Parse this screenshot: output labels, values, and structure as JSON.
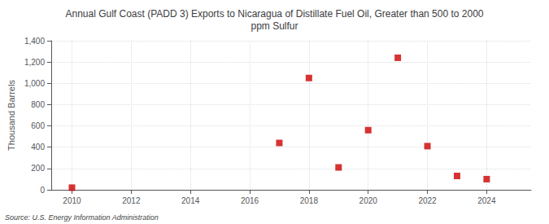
{
  "chart_data": {
    "type": "scatter",
    "title": "Annual Gulf Coast (PADD 3) Exports to Nicaragua of Distillate Fuel Oil, Greater than 500 to 2000\nppm Sulfur",
    "ylabel": "Thousand Barrels",
    "source": "Source: U.S. Energy Information Administration",
    "x": [
      2010,
      2011,
      2012,
      2013,
      2014,
      2015,
      2016,
      2017,
      2018,
      2019,
      2020,
      2021,
      2022,
      2023,
      2024
    ],
    "values": [
      20,
      null,
      null,
      null,
      null,
      null,
      null,
      440,
      1050,
      210,
      560,
      1240,
      410,
      130,
      100
    ],
    "color": "#cc0000",
    "marker": "square",
    "xlim": [
      2009.3,
      2025.5
    ],
    "xticks": [
      2010,
      2012,
      2014,
      2016,
      2018,
      2020,
      2022,
      2024
    ],
    "ylim": [
      0,
      1400
    ],
    "yticks": [
      0,
      200,
      400,
      600,
      800,
      {
        "value": 1000,
        "label": "1,000"
      },
      {
        "value": 1200,
        "label": "1,200"
      },
      {
        "value": 1400,
        "label": "1,400"
      }
    ],
    "grid": true
  }
}
